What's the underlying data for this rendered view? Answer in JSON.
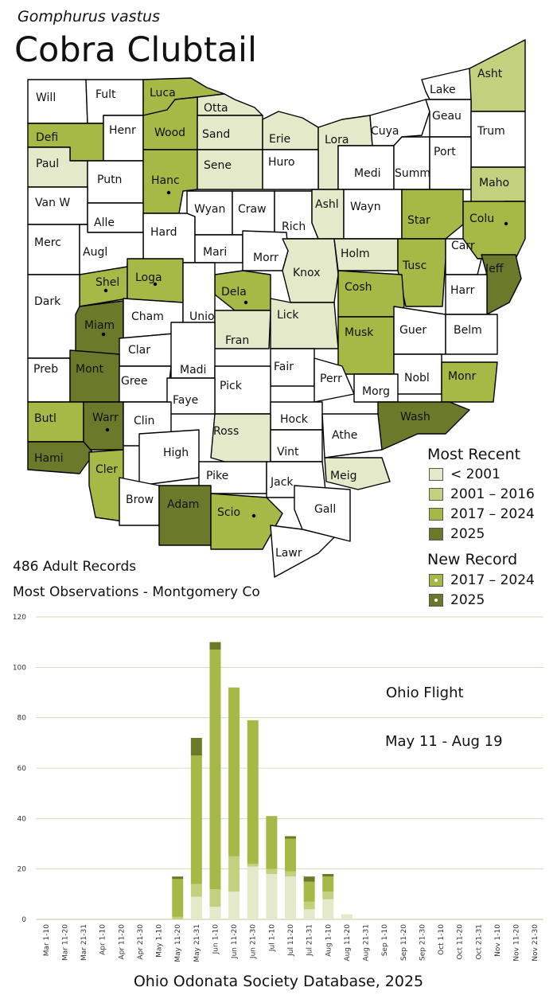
{
  "species": "Gomphurus vastus",
  "common_name": "Cobra Clubtail",
  "colors": {
    "pre2001": "#e3e9c9",
    "y2001_2016": "#c3d07e",
    "y2017_2024": "#a6b845",
    "y2025": "#6b7a2a",
    "none": "#ffffff"
  },
  "legend": {
    "title": "Most Recent",
    "items": [
      {
        "label": "< 2001",
        "key": "pre2001"
      },
      {
        "label": "2001 – 2016",
        "key": "y2001_2016"
      },
      {
        "label": "2017 – 2024",
        "key": "y2017_2024"
      },
      {
        "label": "2025",
        "key": "y2025"
      }
    ],
    "new_title": "New Record",
    "new_items": [
      {
        "label": "2017 – 2024",
        "key": "y2017_2024"
      },
      {
        "label": "2025",
        "key": "y2025"
      }
    ]
  },
  "records_text": "486 Adult Records",
  "most_obs_text": "Most Observations - Montgomery Co",
  "counties": [
    {
      "name": "Will",
      "status": "none",
      "new": false
    },
    {
      "name": "Fult",
      "status": "none",
      "new": false
    },
    {
      "name": "Luca",
      "status": "y2017_2024",
      "new": false
    },
    {
      "name": "Otta",
      "status": "pre2001",
      "new": false
    },
    {
      "name": "Lake",
      "status": "none",
      "new": false
    },
    {
      "name": "Asht",
      "status": "y2001_2016",
      "new": false
    },
    {
      "name": "Defi",
      "status": "y2017_2024",
      "new": false
    },
    {
      "name": "Henr",
      "status": "none",
      "new": false
    },
    {
      "name": "Wood",
      "status": "y2017_2024",
      "new": false
    },
    {
      "name": "Sand",
      "status": "pre2001",
      "new": false
    },
    {
      "name": "Erie",
      "status": "pre2001",
      "new": false
    },
    {
      "name": "Lora",
      "status": "pre2001",
      "new": false
    },
    {
      "name": "Cuya",
      "status": "none",
      "new": false
    },
    {
      "name": "Geau",
      "status": "none",
      "new": false
    },
    {
      "name": "Trum",
      "status": "none",
      "new": false
    },
    {
      "name": "Paul",
      "status": "pre2001",
      "new": false
    },
    {
      "name": "Putn",
      "status": "none",
      "new": false
    },
    {
      "name": "Hanc",
      "status": "y2017_2024",
      "new": true
    },
    {
      "name": "Sene",
      "status": "pre2001",
      "new": false
    },
    {
      "name": "Huro",
      "status": "none",
      "new": false
    },
    {
      "name": "Medi",
      "status": "none",
      "new": false
    },
    {
      "name": "Summ",
      "status": "none",
      "new": false
    },
    {
      "name": "Port",
      "status": "none",
      "new": false
    },
    {
      "name": "Maho",
      "status": "y2001_2016",
      "new": false
    },
    {
      "name": "Van W",
      "status": "none",
      "new": false
    },
    {
      "name": "Alle",
      "status": "none",
      "new": false
    },
    {
      "name": "Hard",
      "status": "none",
      "new": false
    },
    {
      "name": "Wyan",
      "status": "none",
      "new": false
    },
    {
      "name": "Craw",
      "status": "none",
      "new": false
    },
    {
      "name": "Rich",
      "status": "none",
      "new": false
    },
    {
      "name": "Ashl",
      "status": "pre2001",
      "new": false
    },
    {
      "name": "Wayn",
      "status": "none",
      "new": false
    },
    {
      "name": "Star",
      "status": "y2017_2024",
      "new": false
    },
    {
      "name": "Colu",
      "status": "y2017_2024",
      "new": true
    },
    {
      "name": "Merc",
      "status": "none",
      "new": false
    },
    {
      "name": "Augl",
      "status": "none",
      "new": false
    },
    {
      "name": "Mari",
      "status": "none",
      "new": false
    },
    {
      "name": "Morr",
      "status": "none",
      "new": false
    },
    {
      "name": "Knox",
      "status": "pre2001",
      "new": false
    },
    {
      "name": "Holm",
      "status": "pre2001",
      "new": false
    },
    {
      "name": "Tusc",
      "status": "y2017_2024",
      "new": false
    },
    {
      "name": "Carr",
      "status": "none",
      "new": false
    },
    {
      "name": "Jeff",
      "status": "y2025",
      "new": false
    },
    {
      "name": "Shel",
      "status": "y2017_2024",
      "new": true
    },
    {
      "name": "Loga",
      "status": "y2017_2024",
      "new": true
    },
    {
      "name": "Dela",
      "status": "y2017_2024",
      "new": true
    },
    {
      "name": "Lick",
      "status": "pre2001",
      "new": false
    },
    {
      "name": "Cosh",
      "status": "y2017_2024",
      "new": false
    },
    {
      "name": "Harr",
      "status": "none",
      "new": false
    },
    {
      "name": "Dark",
      "status": "none",
      "new": false
    },
    {
      "name": "Miam",
      "status": "y2025",
      "new": true
    },
    {
      "name": "Cham",
      "status": "none",
      "new": false
    },
    {
      "name": "Unio",
      "status": "none",
      "new": false
    },
    {
      "name": "Fran",
      "status": "pre2001",
      "new": false
    },
    {
      "name": "Musk",
      "status": "y2017_2024",
      "new": false
    },
    {
      "name": "Guer",
      "status": "none",
      "new": false
    },
    {
      "name": "Belm",
      "status": "none",
      "new": false
    },
    {
      "name": "Clar",
      "status": "none",
      "new": false
    },
    {
      "name": "Preb",
      "status": "none",
      "new": false
    },
    {
      "name": "Mont",
      "status": "y2025",
      "new": false
    },
    {
      "name": "Gree",
      "status": "none",
      "new": false
    },
    {
      "name": "Madi",
      "status": "none",
      "new": false
    },
    {
      "name": "Fair",
      "status": "none",
      "new": false
    },
    {
      "name": "Perr",
      "status": "none",
      "new": false
    },
    {
      "name": "Nobl",
      "status": "none",
      "new": false
    },
    {
      "name": "Monr",
      "status": "y2017_2024",
      "new": false
    },
    {
      "name": "Pick",
      "status": "none",
      "new": false
    },
    {
      "name": "Faye",
      "status": "none",
      "new": false
    },
    {
      "name": "Morg",
      "status": "none",
      "new": false
    },
    {
      "name": "Butl",
      "status": "y2017_2024",
      "new": false
    },
    {
      "name": "Warr",
      "status": "y2025",
      "new": true
    },
    {
      "name": "Clin",
      "status": "none",
      "new": false
    },
    {
      "name": "Hock",
      "status": "none",
      "new": false
    },
    {
      "name": "Wash",
      "status": "y2025",
      "new": false
    },
    {
      "name": "Ross",
      "status": "pre2001",
      "new": false
    },
    {
      "name": "Athe",
      "status": "none",
      "new": false
    },
    {
      "name": "Vint",
      "status": "none",
      "new": false
    },
    {
      "name": "Hami",
      "status": "y2025",
      "new": false
    },
    {
      "name": "High",
      "status": "none",
      "new": false
    },
    {
      "name": "Cler",
      "status": "y2017_2024",
      "new": false
    },
    {
      "name": "Meig",
      "status": "pre2001",
      "new": false
    },
    {
      "name": "Pike",
      "status": "none",
      "new": false
    },
    {
      "name": "Jack",
      "status": "none",
      "new": false
    },
    {
      "name": "Brow",
      "status": "none",
      "new": false
    },
    {
      "name": "Adam",
      "status": "y2025",
      "new": false
    },
    {
      "name": "Scio",
      "status": "y2017_2024",
      "new": true
    },
    {
      "name": "Gall",
      "status": "none",
      "new": false
    },
    {
      "name": "Lawr",
      "status": "none",
      "new": false
    }
  ],
  "chart_data": {
    "type": "bar",
    "stacked": true,
    "categories": [
      "Mar 1-10",
      "Mar 11-20",
      "Mar 21-31",
      "Apr 1-10",
      "Apr 11-20",
      "Apr 21-30",
      "May 1-10",
      "May 11-20",
      "May 21-31",
      "Jun 1-10",
      "Jun 11-20",
      "Jun 21-30",
      "Jul 1-10",
      "Jul 11-20",
      "Jul 21-31",
      "Aug 1-10",
      "Aug 11-20",
      "Aug 21-31",
      "Sep 1-10",
      "Sep 11-20",
      "Sep 21-30",
      "Oct 1-10",
      "Oct 11-20",
      "Oct 21-31",
      "Nov 1-10",
      "Nov 11-20",
      "Nov 21-30"
    ],
    "series": [
      {
        "key": "pre2001",
        "values": [
          0,
          0,
          0,
          0,
          0,
          0,
          0,
          0,
          9,
          5,
          11,
          21,
          18,
          17,
          4,
          8,
          2,
          0,
          0,
          0,
          0,
          0,
          0,
          0,
          0,
          0,
          0
        ]
      },
      {
        "key": "y2001_2016",
        "values": [
          0,
          0,
          0,
          0,
          0,
          0,
          0,
          1,
          5,
          7,
          14,
          1,
          2,
          2,
          3,
          3,
          0,
          0,
          0,
          0,
          0,
          0,
          0,
          0,
          0,
          0,
          0
        ]
      },
      {
        "key": "y2017_2024",
        "values": [
          0,
          0,
          0,
          0,
          0,
          0,
          0,
          15,
          51,
          95,
          67,
          57,
          21,
          13,
          8,
          6,
          0,
          0,
          0,
          0,
          0,
          0,
          0,
          0,
          0,
          0,
          0
        ]
      },
      {
        "key": "y2025",
        "values": [
          0,
          0,
          0,
          0,
          0,
          0,
          0,
          1,
          7,
          3,
          0,
          0,
          0,
          1,
          2,
          1,
          0,
          0,
          0,
          0,
          0,
          0,
          0,
          0,
          0,
          0,
          0
        ]
      }
    ],
    "ylim": [
      0,
      120
    ],
    "yticks": [
      0,
      20,
      40,
      60,
      80,
      100,
      120
    ],
    "grid": true
  },
  "flight_title": "Ohio Flight",
  "flight_range": "May 11 - Aug 19",
  "footer": "Ohio Odonata Society Database, 2025"
}
